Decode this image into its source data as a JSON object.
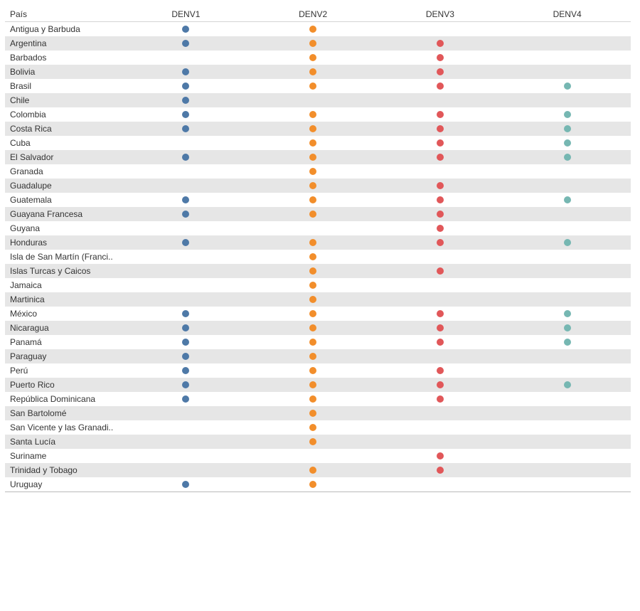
{
  "table": {
    "country_header": "País"
  },
  "colors": {
    "denv1": "#4e79a7",
    "denv2": "#f28e2b",
    "denv3": "#e15759",
    "denv4": "#76b7b2",
    "row_stripe": "#e6e6e6",
    "text": "#333333",
    "header_rule": "#d4d4d4",
    "bottom_rule": "#b9b9b9"
  },
  "chart_data": {
    "type": "table",
    "row_header": "País",
    "columns": [
      "DENV1",
      "DENV2",
      "DENV3",
      "DENV4"
    ],
    "legend_position": "none",
    "grid": "row-banding",
    "categories": [
      "Antigua y Barbuda",
      "Argentina",
      "Barbados",
      "Bolivia",
      "Brasil",
      "Chile",
      "Colombia",
      "Costa Rica",
      "Cuba",
      "El Salvador",
      "Granada",
      "Guadalupe",
      "Guatemala",
      "Guayana Francesa",
      "Guyana",
      "Honduras",
      "Isla de San Martín (Franci..",
      "Islas Turcas y Caicos",
      "Jamaica",
      "Martinica",
      "México",
      "Nicaragua",
      "Panamá",
      "Paraguay",
      "Perú",
      "Puerto Rico",
      "República Dominicana",
      "San Bartolomé",
      "San Vicente y las Granadi..",
      "Santa Lucía",
      "Suriname",
      "Trinidad y Tobago",
      "Uruguay"
    ],
    "series": [
      {
        "name": "DENV1",
        "color": "#4e79a7",
        "values": [
          1,
          1,
          0,
          1,
          1,
          1,
          1,
          1,
          0,
          1,
          0,
          0,
          1,
          1,
          0,
          1,
          0,
          0,
          0,
          0,
          1,
          1,
          1,
          1,
          1,
          1,
          1,
          0,
          0,
          0,
          0,
          0,
          1
        ]
      },
      {
        "name": "DENV2",
        "color": "#f28e2b",
        "values": [
          1,
          1,
          1,
          1,
          1,
          0,
          1,
          1,
          1,
          1,
          1,
          1,
          1,
          1,
          0,
          1,
          1,
          1,
          1,
          1,
          1,
          1,
          1,
          1,
          1,
          1,
          1,
          1,
          1,
          1,
          0,
          1,
          1
        ]
      },
      {
        "name": "DENV3",
        "color": "#e15759",
        "values": [
          0,
          1,
          1,
          1,
          1,
          0,
          1,
          1,
          1,
          1,
          0,
          1,
          1,
          1,
          1,
          1,
          0,
          1,
          0,
          0,
          1,
          1,
          1,
          0,
          1,
          1,
          1,
          0,
          0,
          0,
          1,
          1,
          0
        ]
      },
      {
        "name": "DENV4",
        "color": "#76b7b2",
        "values": [
          0,
          0,
          0,
          0,
          1,
          0,
          1,
          1,
          1,
          1,
          0,
          0,
          1,
          0,
          0,
          1,
          0,
          0,
          0,
          0,
          1,
          1,
          1,
          0,
          0,
          1,
          0,
          0,
          0,
          0,
          0,
          0,
          0
        ]
      }
    ]
  }
}
